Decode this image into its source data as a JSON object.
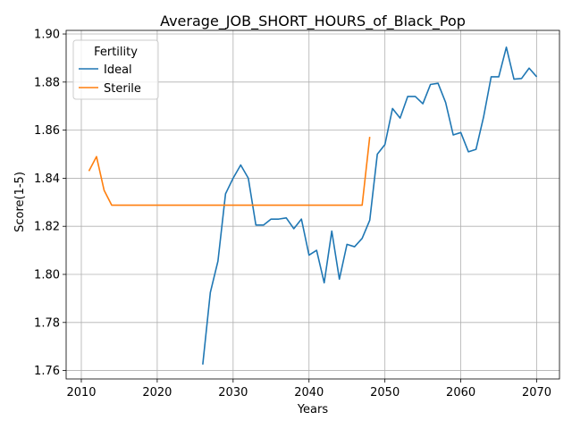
{
  "chart_data": {
    "type": "line",
    "title": "Average_JOB_SHORT_HOURS_of_Black_Pop",
    "xlabel": "Years",
    "ylabel": "Score(1-5)",
    "xlim": [
      2008,
      2073
    ],
    "ylim": [
      1.7565,
      1.9015
    ],
    "xticks": [
      2010,
      2020,
      2030,
      2040,
      2050,
      2060,
      2070
    ],
    "yticks": [
      1.76,
      1.78,
      1.8,
      1.82,
      1.84,
      1.86,
      1.88,
      1.9
    ],
    "ytick_labels": [
      "1.76",
      "1.78",
      "1.80",
      "1.82",
      "1.84",
      "1.86",
      "1.88",
      "1.90"
    ],
    "grid": true,
    "legend": {
      "title": "Fertility",
      "placement": "top-left"
    },
    "series": [
      {
        "name": "Ideal",
        "color": "#1f77b4",
        "x": [
          2026,
          2027,
          2028,
          2029,
          2030,
          2031,
          2032,
          2033,
          2034,
          2035,
          2036,
          2037,
          2038,
          2039,
          2040,
          2041,
          2042,
          2043,
          2044,
          2045,
          2046,
          2047,
          2048,
          2049,
          2050,
          2051,
          2052,
          2053,
          2054,
          2055,
          2056,
          2057,
          2058,
          2059,
          2060,
          2061,
          2062,
          2063,
          2064,
          2065,
          2066,
          2067,
          2068,
          2069,
          2070
        ],
        "y": [
          1.7625,
          1.7925,
          1.8055,
          1.8335,
          1.84,
          1.8455,
          1.84,
          1.8205,
          1.8205,
          1.823,
          1.823,
          1.8235,
          1.819,
          1.823,
          1.808,
          1.81,
          1.7965,
          1.818,
          1.798,
          1.8125,
          1.8115,
          1.815,
          1.8225,
          1.85,
          1.854,
          1.869,
          1.865,
          1.874,
          1.874,
          1.871,
          1.879,
          1.8795,
          1.8715,
          1.858,
          1.859,
          1.851,
          1.852,
          1.8655,
          1.8822,
          1.8822,
          1.8945,
          1.8812,
          1.8815,
          1.8858,
          1.8822
        ]
      },
      {
        "name": "Sterile",
        "color": "#ff7f0e",
        "x": [
          2011,
          2012,
          2013,
          2014,
          2015,
          2016,
          2017,
          2018,
          2019,
          2020,
          2021,
          2022,
          2023,
          2024,
          2025,
          2026,
          2027,
          2028,
          2029,
          2030,
          2031,
          2032,
          2033,
          2034,
          2035,
          2036,
          2037,
          2038,
          2039,
          2040,
          2041,
          2042,
          2043,
          2044,
          2045,
          2046,
          2047,
          2048
        ],
        "y": [
          1.843,
          1.849,
          1.835,
          1.8288,
          1.8288,
          1.8288,
          1.8288,
          1.8288,
          1.8288,
          1.8288,
          1.8288,
          1.8288,
          1.8288,
          1.8288,
          1.8288,
          1.8288,
          1.8288,
          1.8288,
          1.8288,
          1.8288,
          1.8288,
          1.8288,
          1.8288,
          1.8288,
          1.8288,
          1.8288,
          1.8288,
          1.8288,
          1.8288,
          1.8288,
          1.8288,
          1.8288,
          1.8288,
          1.8288,
          1.8288,
          1.8288,
          1.8288,
          1.8572
        ]
      }
    ]
  }
}
